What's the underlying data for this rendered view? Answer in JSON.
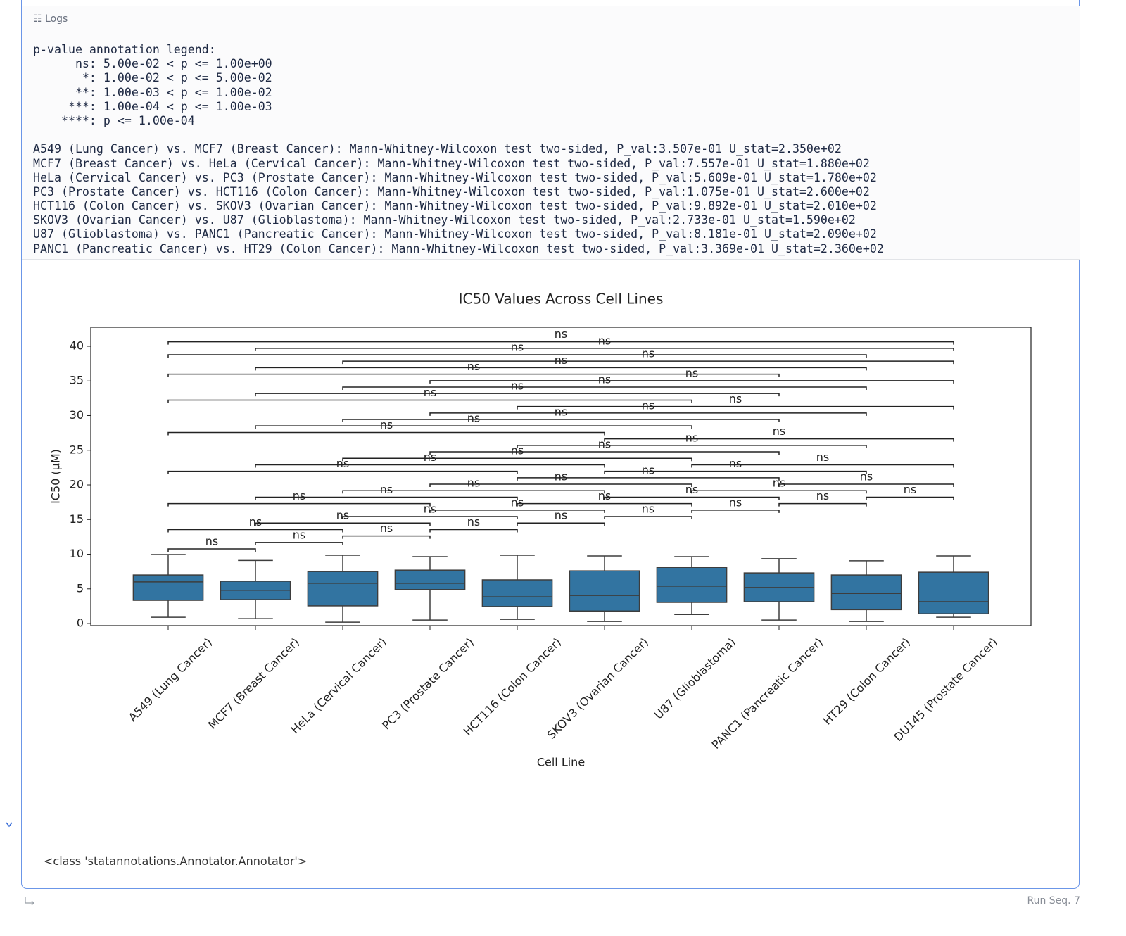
{
  "logs": {
    "title": "Logs",
    "legend_lines": [
      "p-value annotation legend:",
      "      ns: 5.00e-02 < p <= 1.00e+00",
      "       *: 1.00e-02 < p <= 5.00e-02",
      "      **: 1.00e-03 < p <= 1.00e-02",
      "     ***: 1.00e-04 < p <= 1.00e-03",
      "    ****: p <= 1.00e-04"
    ],
    "test_lines": [
      "A549 (Lung Cancer) vs. MCF7 (Breast Cancer): Mann-Whitney-Wilcoxon test two-sided, P_val:3.507e-01 U_stat=2.350e+02",
      "MCF7 (Breast Cancer) vs. HeLa (Cervical Cancer): Mann-Whitney-Wilcoxon test two-sided, P_val:7.557e-01 U_stat=1.880e+02",
      "HeLa (Cervical Cancer) vs. PC3 (Prostate Cancer): Mann-Whitney-Wilcoxon test two-sided, P_val:5.609e-01 U_stat=1.780e+02",
      "PC3 (Prostate Cancer) vs. HCT116 (Colon Cancer): Mann-Whitney-Wilcoxon test two-sided, P_val:1.075e-01 U_stat=2.600e+02",
      "HCT116 (Colon Cancer) vs. SKOV3 (Ovarian Cancer): Mann-Whitney-Wilcoxon test two-sided, P_val:9.892e-01 U_stat=2.010e+02",
      "SKOV3 (Ovarian Cancer) vs. U87 (Glioblastoma): Mann-Whitney-Wilcoxon test two-sided, P_val:2.733e-01 U_stat=1.590e+02",
      "U87 (Glioblastoma) vs. PANC1 (Pancreatic Cancer): Mann-Whitney-Wilcoxon test two-sided, P_val:8.181e-01 U_stat=2.090e+02",
      "PANC1 (Pancreatic Cancer) vs. HT29 (Colon Cancer): Mann-Whitney-Wilcoxon test two-sided, P_val:3.369e-01 U_stat=2.360e+02"
    ]
  },
  "chart_data": {
    "type": "box",
    "title": "IC50 Values Across Cell Lines",
    "xlabel": "Cell Line",
    "ylabel": "IC50 (µM)",
    "categories": [
      "A549 (Lung Cancer)",
      "MCF7 (Breast Cancer)",
      "HeLa (Cervical Cancer)",
      "PC3 (Prostate Cancer)",
      "HCT116 (Colon Cancer)",
      "SKOV3 (Ovarian Cancer)",
      "U87 (Glioblastoma)",
      "PANC1 (Pancreatic Cancer)",
      "HT29 (Colon Cancer)",
      "DU145 (Prostate Cancer)"
    ],
    "boxes": [
      {
        "whislo": 0.9,
        "q1": 3.35,
        "med": 6.0,
        "q3": 7.0,
        "whishi": 9.95
      },
      {
        "whislo": 0.7,
        "q1": 3.45,
        "med": 4.8,
        "q3": 6.1,
        "whishi": 9.1
      },
      {
        "whislo": 0.2,
        "q1": 2.55,
        "med": 5.8,
        "q3": 7.5,
        "whishi": 9.85
      },
      {
        "whislo": 0.5,
        "q1": 4.9,
        "med": 5.8,
        "q3": 7.7,
        "whishi": 9.65
      },
      {
        "whislo": 0.6,
        "q1": 2.45,
        "med": 3.85,
        "q3": 6.3,
        "whishi": 9.85
      },
      {
        "whislo": 0.3,
        "q1": 1.8,
        "med": 4.05,
        "q3": 7.6,
        "whishi": 9.75
      },
      {
        "whislo": 1.3,
        "q1": 3.05,
        "med": 5.4,
        "q3": 8.1,
        "whishi": 9.65
      },
      {
        "whislo": 0.5,
        "q1": 3.15,
        "med": 5.2,
        "q3": 7.3,
        "whishi": 9.35
      },
      {
        "whislo": 0.3,
        "q1": 2.0,
        "med": 4.35,
        "q3": 7.0,
        "whishi": 9.05
      },
      {
        "whislo": 0.9,
        "q1": 1.4,
        "med": 3.15,
        "q3": 7.4,
        "whishi": 9.75
      }
    ],
    "color": "#3274a1",
    "ylim": [
      -0.3,
      42.74
    ],
    "yticks": [
      0,
      5,
      10,
      15,
      20,
      25,
      30,
      35,
      40
    ],
    "annotations": [
      {
        "pair": [
          0,
          1
        ],
        "y": 10.76,
        "label": "ns"
      },
      {
        "pair": [
          1,
          2
        ],
        "y": 11.69,
        "label": "ns"
      },
      {
        "pair": [
          2,
          3
        ],
        "y": 12.63,
        "label": "ns"
      },
      {
        "pair": [
          3,
          4
        ],
        "y": 13.56,
        "label": "ns"
      },
      {
        "pair": [
          4,
          5
        ],
        "y": 14.5,
        "label": "ns"
      },
      {
        "pair": [
          5,
          6
        ],
        "y": 15.43,
        "label": "ns"
      },
      {
        "pair": [
          6,
          7
        ],
        "y": 16.36,
        "label": "ns"
      },
      {
        "pair": [
          7,
          8
        ],
        "y": 17.3,
        "label": "ns"
      },
      {
        "pair": [
          8,
          9
        ],
        "y": 18.23,
        "label": "ns"
      },
      {
        "pair": [
          0,
          2
        ],
        "y": 13.56,
        "label": "ns"
      },
      {
        "pair": [
          1,
          3
        ],
        "y": 14.5,
        "label": "ns"
      },
      {
        "pair": [
          2,
          4
        ],
        "y": 15.43,
        "label": "ns"
      },
      {
        "pair": [
          3,
          5
        ],
        "y": 16.36,
        "label": "ns"
      },
      {
        "pair": [
          4,
          6
        ],
        "y": 17.3,
        "label": "ns"
      },
      {
        "pair": [
          5,
          7
        ],
        "y": 18.23,
        "label": "ns"
      },
      {
        "pair": [
          6,
          8
        ],
        "y": 19.17,
        "label": "ns"
      },
      {
        "pair": [
          7,
          9
        ],
        "y": 20.1,
        "label": "ns"
      },
      {
        "pair": [
          0,
          3
        ],
        "y": 17.3,
        "label": "ns"
      },
      {
        "pair": [
          1,
          4
        ],
        "y": 18.23,
        "label": "ns"
      },
      {
        "pair": [
          2,
          5
        ],
        "y": 19.17,
        "label": "ns"
      },
      {
        "pair": [
          3,
          6
        ],
        "y": 20.1,
        "label": "ns"
      },
      {
        "pair": [
          4,
          7
        ],
        "y": 21.03,
        "label": "ns"
      },
      {
        "pair": [
          5,
          8
        ],
        "y": 21.97,
        "label": "ns"
      },
      {
        "pair": [
          6,
          9
        ],
        "y": 22.9,
        "label": "ns"
      },
      {
        "pair": [
          0,
          4
        ],
        "y": 21.97,
        "label": "ns"
      },
      {
        "pair": [
          1,
          5
        ],
        "y": 22.9,
        "label": "ns"
      },
      {
        "pair": [
          2,
          6
        ],
        "y": 23.84,
        "label": "ns"
      },
      {
        "pair": [
          3,
          7
        ],
        "y": 24.77,
        "label": "ns"
      },
      {
        "pair": [
          4,
          8
        ],
        "y": 25.7,
        "label": "ns"
      },
      {
        "pair": [
          5,
          9
        ],
        "y": 26.64,
        "label": "ns"
      },
      {
        "pair": [
          0,
          5
        ],
        "y": 27.57,
        "label": "ns"
      },
      {
        "pair": [
          1,
          6
        ],
        "y": 28.51,
        "label": "ns"
      },
      {
        "pair": [
          2,
          7
        ],
        "y": 29.44,
        "label": "ns"
      },
      {
        "pair": [
          3,
          8
        ],
        "y": 30.37,
        "label": "ns"
      },
      {
        "pair": [
          4,
          9
        ],
        "y": 31.31,
        "label": "ns"
      },
      {
        "pair": [
          0,
          6
        ],
        "y": 32.24,
        "label": "ns"
      },
      {
        "pair": [
          1,
          7
        ],
        "y": 33.18,
        "label": "ns"
      },
      {
        "pair": [
          2,
          8
        ],
        "y": 34.11,
        "label": "ns"
      },
      {
        "pair": [
          3,
          9
        ],
        "y": 35.04,
        "label": "ns"
      },
      {
        "pair": [
          0,
          7
        ],
        "y": 35.98,
        "label": "ns"
      },
      {
        "pair": [
          1,
          8
        ],
        "y": 36.91,
        "label": "ns"
      },
      {
        "pair": [
          2,
          9
        ],
        "y": 37.85,
        "label": "ns"
      },
      {
        "pair": [
          0,
          8
        ],
        "y": 38.78,
        "label": "ns"
      },
      {
        "pair": [
          1,
          9
        ],
        "y": 39.71,
        "label": "ns"
      },
      {
        "pair": [
          0,
          9
        ],
        "y": 40.65,
        "label": "ns"
      }
    ]
  },
  "output": "<class 'statannotations.Annotator.Annotator'>",
  "footer": "Run Seq. 7"
}
